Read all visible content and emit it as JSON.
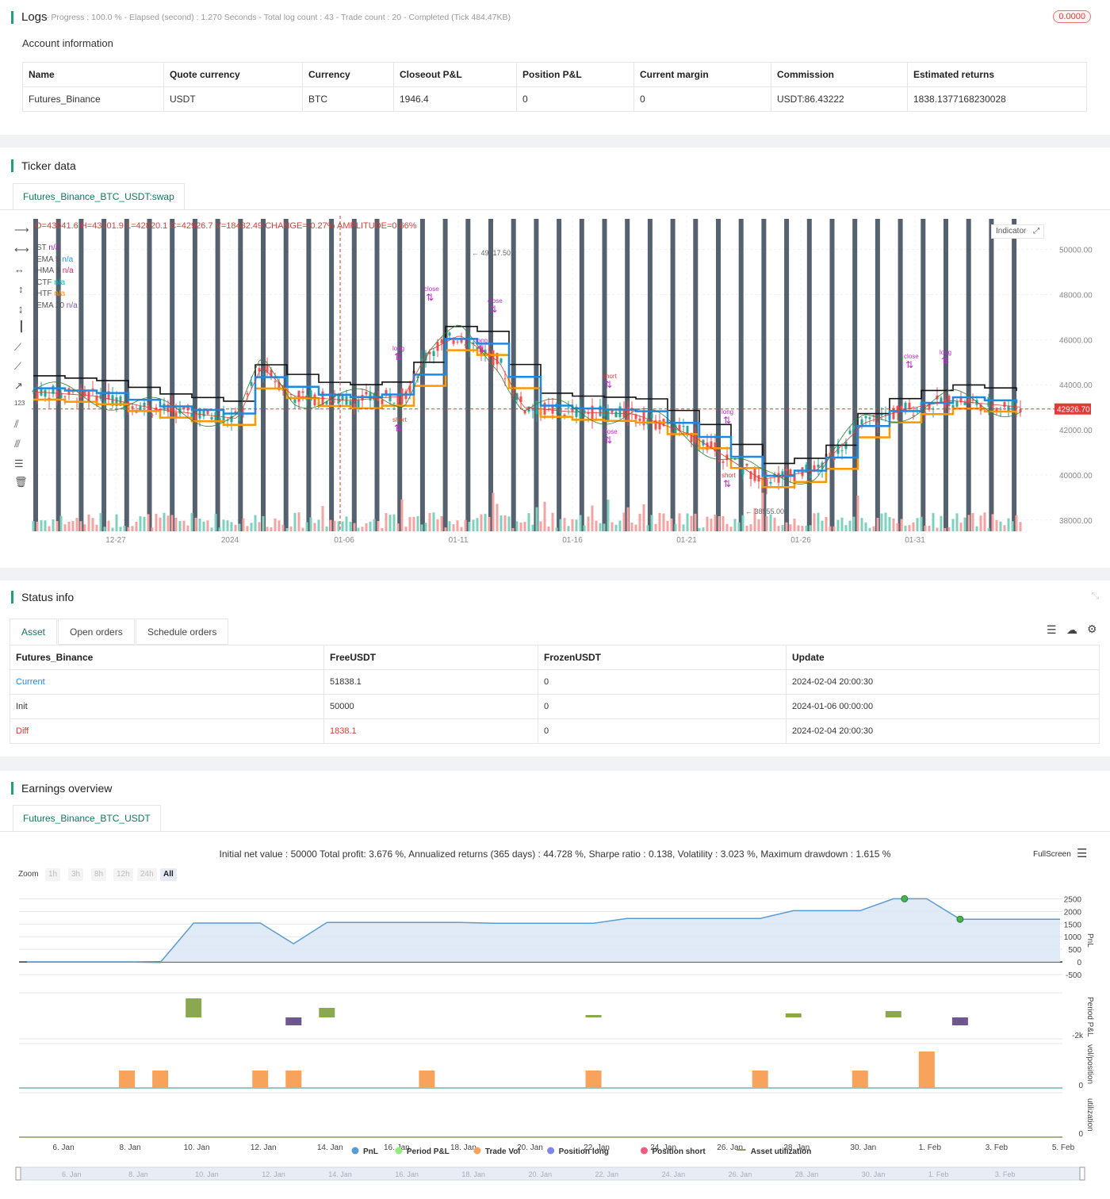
{
  "logs": {
    "title": "Logs",
    "status": "- Progress : 100.0 % - Elapsed (second) : 1.270  Seconds - Total log count : 43 - Trade count : 20 - Completed (Tick 484.47KB)",
    "badge": "0.0000"
  },
  "account": {
    "title": "Account information",
    "headers": [
      "Name",
      "Quote currency",
      "Currency",
      "Closeout P&L",
      "Position P&L",
      "Current margin",
      "Commission",
      "Estimated returns"
    ],
    "row": [
      "Futures_Binance",
      "USDT",
      "BTC",
      "1946.4",
      "0",
      "0",
      "USDT:86.43222",
      "1838.1377168230028"
    ]
  },
  "ticker": {
    "title": "Ticker data",
    "tab": "Futures_Binance_BTC_USDT:swap",
    "ohlc": "O=43041.6 H=43101.9 L=42820.1 C=42926.7 V=18432.49 CHANGE=-0.27% AMPLITUDE=0.66%",
    "indicator_btn": "Indicator",
    "legend": [
      {
        "name": "ST",
        "value": "n/a",
        "color": "#9c27b0"
      },
      {
        "name": "EMA 5",
        "value": "n/a",
        "color": "#2196f3"
      },
      {
        "name": "HMA 5",
        "value": "n/a",
        "color": "#e91e63"
      },
      {
        "name": "CTF",
        "value": "n/a",
        "color": "#00bcd4"
      },
      {
        "name": "HTF",
        "value": "n/a",
        "color": "#ff9800"
      },
      {
        "name": "EMA 20",
        "value": "n/a",
        "color": "#7e57c2"
      }
    ],
    "price_ticks": [
      "50000.00",
      "48000.00",
      "46000.00",
      "44000.00",
      "42000.00",
      "40000.00",
      "38000.00"
    ],
    "last_price": "42926.70",
    "date_ticks": [
      "12-27",
      "2024",
      "01-06",
      "01-11",
      "01-16",
      "01-21",
      "01-26",
      "01-31"
    ],
    "high_label": "49017.50",
    "low_label": "38555.00",
    "trade_labels": [
      "close",
      "long",
      "short",
      "close",
      "long",
      "short",
      "close",
      "long",
      "short",
      "close",
      "long"
    ]
  },
  "status": {
    "title": "Status info",
    "tabs": [
      "Asset",
      "Open orders",
      "Schedule orders"
    ],
    "headers": [
      "Futures_Binance",
      "FreeUSDT",
      "FrozenUSDT",
      "Update"
    ],
    "rows": [
      {
        "label": "Current",
        "free": "51838.1",
        "frozen": "0",
        "update": "2024-02-04 20:00:30"
      },
      {
        "label": "Init",
        "free": "50000",
        "frozen": "0",
        "update": "2024-01-06 00:00:00"
      },
      {
        "label": "Diff",
        "free": "1838.1",
        "frozen": "0",
        "update": "2024-02-04 20:00:30"
      }
    ]
  },
  "earnings": {
    "title": "Earnings overview",
    "tab": "Futures_Binance_BTC_USDT",
    "summary": "Initial net value : 50000 Total profit: 3.676 %, Annualized returns (365 days) : 44.728 %, Sharpe ratio : 0.138, Volatility : 3.023 %, Maximum drawdown : 1.615 %",
    "fullscreen": "FullScreen",
    "zoom_label": "Zoom",
    "zoom_buttons": [
      "1h",
      "3h",
      "8h",
      "12h",
      "24h",
      "All"
    ],
    "pnl_ticks": [
      "2500",
      "2000",
      "1500",
      "1000",
      "500",
      "0",
      "-500"
    ],
    "axis_titles": [
      "PnL",
      "Period P&L",
      "vol/position",
      "utilization"
    ],
    "period_tick": "-2k",
    "vol_tick": "0",
    "util_tick": "0",
    "date_ticks": [
      "6. Jan",
      "8. Jan",
      "10. Jan",
      "12. Jan",
      "14. Jan",
      "16. Jan",
      "18. Jan",
      "20. Jan",
      "22. Jan",
      "24. Jan",
      "26. Jan",
      "28. Jan",
      "30. Jan",
      "1. Feb",
      "3. Feb",
      "5. Feb"
    ],
    "legend": [
      {
        "name": "PnL",
        "color": "#5b9bd5"
      },
      {
        "name": "Period P&L",
        "color": "#90ed7d"
      },
      {
        "name": "Trade Vol",
        "color": "#f7a35c"
      },
      {
        "name": "Position long",
        "color": "#8085e9"
      },
      {
        "name": "Position short",
        "color": "#f15c80"
      },
      {
        "name": "Asset utilization",
        "color": "#8a9a5b"
      }
    ],
    "navigator_ticks": [
      "6. Jan",
      "8. Jan",
      "10. Jan",
      "12. Jan",
      "14. Jan",
      "16. Jan",
      "18. Jan",
      "20. Jan",
      "22. Jan",
      "24. Jan",
      "26. Jan",
      "28. Jan",
      "30. Jan",
      "1. Feb",
      "3. Feb"
    ],
    "pnl_series": [
      {
        "date": "5. Jan",
        "value": 0
      },
      {
        "date": "8. Jan",
        "value": 0
      },
      {
        "date": "9. Jan",
        "value": -20
      },
      {
        "date": "10. Jan",
        "value": 1540
      },
      {
        "date": "12. Jan",
        "value": 1540
      },
      {
        "date": "13. Jan",
        "value": 720
      },
      {
        "date": "14. Jan",
        "value": 1560
      },
      {
        "date": "18. Jan",
        "value": 1560
      },
      {
        "date": "19. Jan",
        "value": 1530
      },
      {
        "date": "22. Jan",
        "value": 1530
      },
      {
        "date": "23. Jan",
        "value": 1720
      },
      {
        "date": "27. Jan",
        "value": 1720
      },
      {
        "date": "28. Jan",
        "value": 2030
      },
      {
        "date": "30. Jan",
        "value": 2030
      },
      {
        "date": "31. Jan",
        "value": 2500
      },
      {
        "date": "1. Feb",
        "value": 2500
      },
      {
        "date": "2. Feb",
        "value": 1690
      },
      {
        "date": "5. Feb",
        "value": 1690
      }
    ]
  }
}
